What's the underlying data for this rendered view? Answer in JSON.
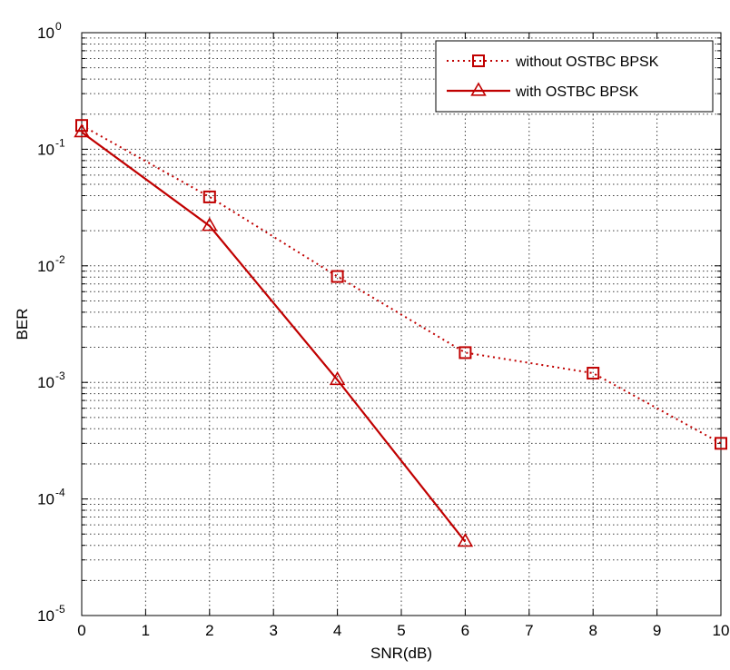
{
  "chart_data": {
    "type": "line",
    "xlabel": "SNR(dB)",
    "ylabel": "BER",
    "xlim": [
      0,
      10
    ],
    "ylim": [
      1e-05,
      1
    ],
    "yscale": "log",
    "grid": true,
    "legend_position": "top-right",
    "x_ticks": [
      "0",
      "1",
      "2",
      "3",
      "4",
      "5",
      "6",
      "7",
      "8",
      "9",
      "10"
    ],
    "y_ticks": [
      {
        "base": "10",
        "exp": "0"
      },
      {
        "base": "10",
        "exp": "-1"
      },
      {
        "base": "10",
        "exp": "-2"
      },
      {
        "base": "10",
        "exp": "-3"
      },
      {
        "base": "10",
        "exp": "-4"
      },
      {
        "base": "10",
        "exp": "-5"
      }
    ],
    "series": [
      {
        "name": "without OSTBC BPSK",
        "color": "#c00000",
        "line_style": "dotted",
        "marker": "square",
        "x": [
          0,
          2,
          4,
          6,
          8,
          10
        ],
        "y": [
          0.16,
          0.039,
          0.0081,
          0.0018,
          0.0012,
          0.0003
        ]
      },
      {
        "name": "with OSTBC BPSK",
        "color": "#c00000",
        "line_style": "solid",
        "marker": "triangle",
        "x": [
          0,
          2,
          4,
          6
        ],
        "y": [
          0.14,
          0.022,
          0.00105,
          4.3e-05
        ]
      }
    ]
  }
}
